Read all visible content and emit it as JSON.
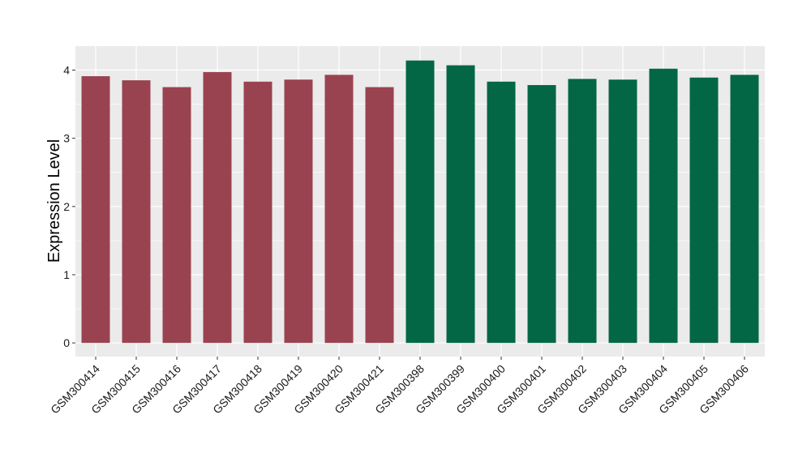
{
  "chart_data": {
    "type": "bar",
    "title": "",
    "xlabel": "",
    "ylabel": "Expression Level",
    "ylim": [
      -0.2,
      4.35
    ],
    "yticks": [
      0,
      1,
      2,
      3,
      4
    ],
    "grid": true,
    "categories": [
      "GSM300414",
      "GSM300415",
      "GSM300416",
      "GSM300417",
      "GSM300418",
      "GSM300419",
      "GSM300420",
      "GSM300421",
      "GSM300398",
      "GSM300399",
      "GSM300400",
      "GSM300401",
      "GSM300402",
      "GSM300403",
      "GSM300404",
      "GSM300405",
      "GSM300406"
    ],
    "values": [
      3.91,
      3.85,
      3.75,
      3.97,
      3.83,
      3.86,
      3.93,
      3.75,
      4.14,
      4.07,
      3.83,
      3.78,
      3.87,
      3.86,
      4.02,
      3.89,
      3.93
    ],
    "bar_colors": [
      "#9a4350",
      "#9a4350",
      "#9a4350",
      "#9a4350",
      "#9a4350",
      "#9a4350",
      "#9a4350",
      "#9a4350",
      "#036745",
      "#036745",
      "#036745",
      "#036745",
      "#036745",
      "#036745",
      "#036745",
      "#036745",
      "#036745"
    ],
    "panel_background": "#ebebeb",
    "gridline_color": "#ffffff"
  }
}
